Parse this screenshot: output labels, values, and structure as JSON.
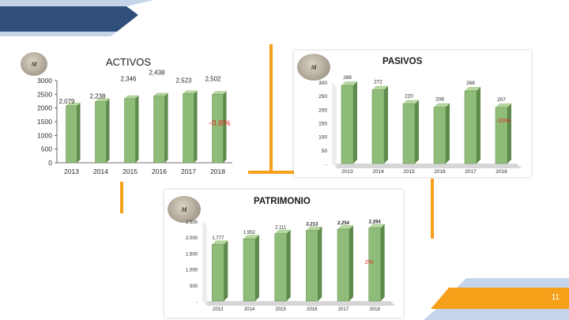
{
  "slide": {
    "page_number": "11",
    "colors": {
      "navy": "#2f4e7c",
      "light_blue": "#c6d4e9",
      "orange": "#f7a11a",
      "bar_face": "#8fbc78",
      "bar_side": "#5e8a4c",
      "bar_top": "#b5d69f",
      "accent_red": "#e8241d"
    }
  },
  "logo": {
    "label": "M",
    "icon": "company-logo-icon"
  },
  "chart_data": [
    {
      "type": "bar",
      "title": "ACTIVOS",
      "categories": [
        "2013",
        "2014",
        "2015",
        "2016",
        "2017",
        "2018"
      ],
      "values": [
        2079,
        2238,
        2346,
        2438,
        2523,
        2502
      ],
      "data_labels": [
        "2,079",
        "2,238",
        "2,346",
        "2,438",
        "2,523",
        "2,502"
      ],
      "y_ticks": [
        "0",
        "500",
        "1000",
        "1500",
        "2000",
        "2500",
        "3000"
      ],
      "ylim": [
        0,
        3000
      ],
      "annotation": "-0.8%",
      "grid": false
    },
    {
      "type": "bar",
      "title": "PASIVOS",
      "categories": [
        "2013",
        "2014",
        "2015",
        "2016",
        "2017",
        "2018"
      ],
      "values": [
        288,
        272,
        220,
        208,
        268,
        207
      ],
      "data_labels": [
        "288",
        "272",
        "220",
        "208",
        "268",
        "207"
      ],
      "y_ticks": [
        "-",
        "50",
        "100",
        "150",
        "200",
        "250",
        "300"
      ],
      "ylim": [
        0,
        300
      ],
      "annotation": "-23%",
      "grid": false
    },
    {
      "type": "bar",
      "title": "PATRIMONIO",
      "categories": [
        "2013",
        "2014",
        "2015",
        "2016",
        "2017",
        "2018"
      ],
      "values": [
        1777,
        1952,
        2111,
        2213,
        2254,
        2294
      ],
      "data_labels": [
        "1.777",
        "1.952",
        "2.111",
        "2.213",
        "2.254",
        "2.294"
      ],
      "y_ticks": [
        "-",
        "500",
        "1.000",
        "1.500",
        "2.000",
        "2.500"
      ],
      "ylim": [
        0,
        2500
      ],
      "annotation": "2%",
      "grid": false
    }
  ]
}
